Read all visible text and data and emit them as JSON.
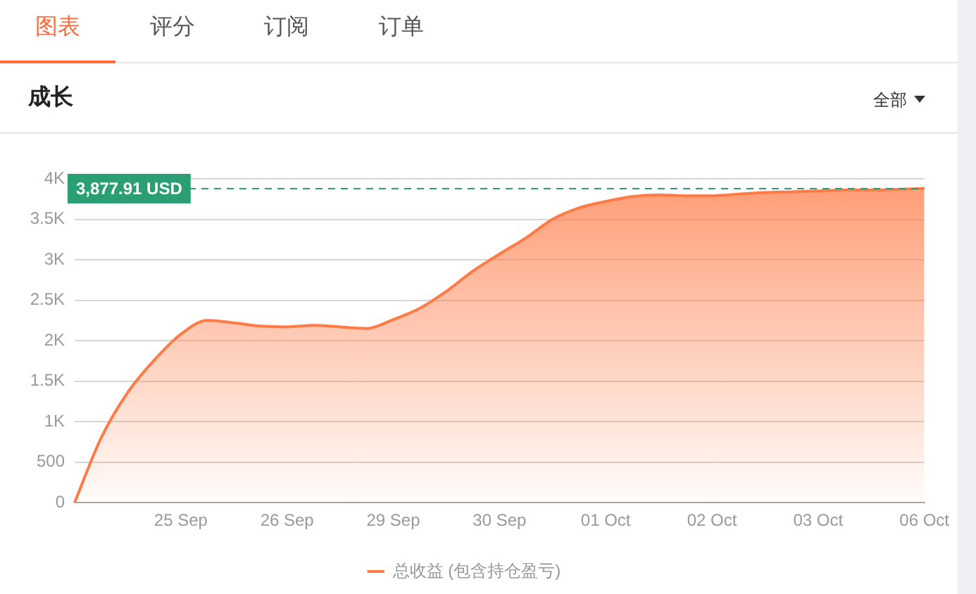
{
  "chart_data": {
    "type": "area",
    "title": "成长",
    "annotations": [
      "图表",
      "评分",
      "订阅",
      "订单",
      "全部"
    ],
    "categories": [
      null,
      null,
      null,
      null,
      "25 Sep",
      null,
      null,
      null,
      "26 Sep",
      null,
      null,
      null,
      "29 Sep",
      null,
      null,
      null,
      "30 Sep",
      null,
      null,
      null,
      "01 Oct",
      null,
      null,
      null,
      "02 Oct",
      null,
      null,
      null,
      "03 Oct",
      null,
      null,
      null,
      "06 Oct"
    ],
    "series": [
      {
        "name": "总收益 (包含持仓盈亏)",
        "color": "#ff7a45",
        "values": [
          0,
          800,
          1360,
          1760,
          2080,
          2250,
          2220,
          2180,
          2170,
          2190,
          2170,
          2150,
          2260,
          2400,
          2610,
          2860,
          3070,
          3270,
          3500,
          3640,
          3720,
          3780,
          3800,
          3790,
          3790,
          3810,
          3830,
          3840,
          3850,
          3860,
          3860,
          3870,
          3880
        ]
      }
    ],
    "ylim": [
      0,
      4000
    ],
    "yticks": [
      0,
      500,
      {
        "value": 1000,
        "label": "1K"
      },
      {
        "value": 1500,
        "label": "1.5K"
      },
      {
        "value": 2000,
        "label": "2K"
      },
      {
        "value": 2500,
        "label": "2.5K"
      },
      {
        "value": 3000,
        "label": "3K"
      },
      {
        "value": 3500,
        "label": "3.5K"
      },
      {
        "value": 4000,
        "label": "4K"
      }
    ],
    "ref_lines": [
      {
        "axis": "y",
        "value": 3877.91,
        "label": "3,877.91 USD",
        "color": "#2b9f73",
        "line_style": "dashed"
      }
    ],
    "grid": "y",
    "legend": "bottom",
    "marker": "none",
    "line_style": "solid"
  }
}
